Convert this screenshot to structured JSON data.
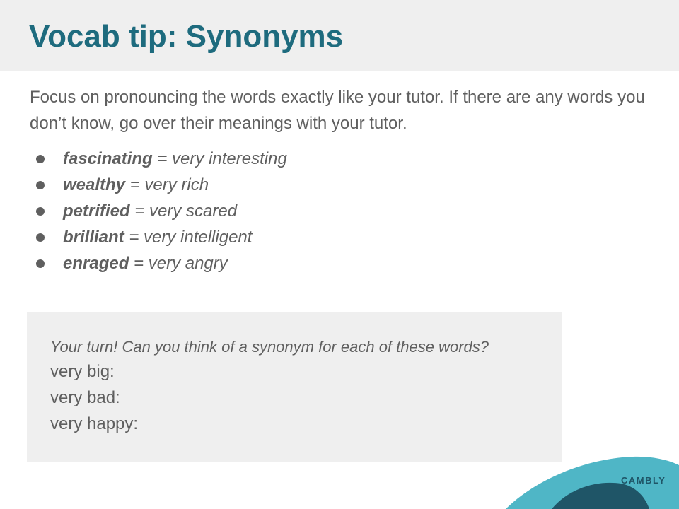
{
  "slide": {
    "title": "Vocab tip: Synonyms",
    "intro": "Focus on pronouncing the words exactly like your tutor. If there are any words you don’t know, go over their meanings with your tutor.",
    "vocab": [
      {
        "word": "fascinating",
        "meaning": " = very interesting"
      },
      {
        "word": "wealthy",
        "meaning": " = very rich"
      },
      {
        "word": "petrified",
        "meaning": " = very scared"
      },
      {
        "word": "brilliant",
        "meaning": " = very intelligent"
      },
      {
        "word": "enraged",
        "meaning": " = very angry"
      }
    ],
    "task": {
      "prompt": "Your turn! Can you think of a synonym for each of these words?",
      "lines": [
        "very big:",
        "very bad:",
        "very happy:"
      ]
    }
  },
  "brand": {
    "name": "CAMBLY",
    "colors": {
      "title": "#1e6b7e",
      "wave_light": "#4fb6c6",
      "wave_dark": "#1f5567"
    }
  }
}
